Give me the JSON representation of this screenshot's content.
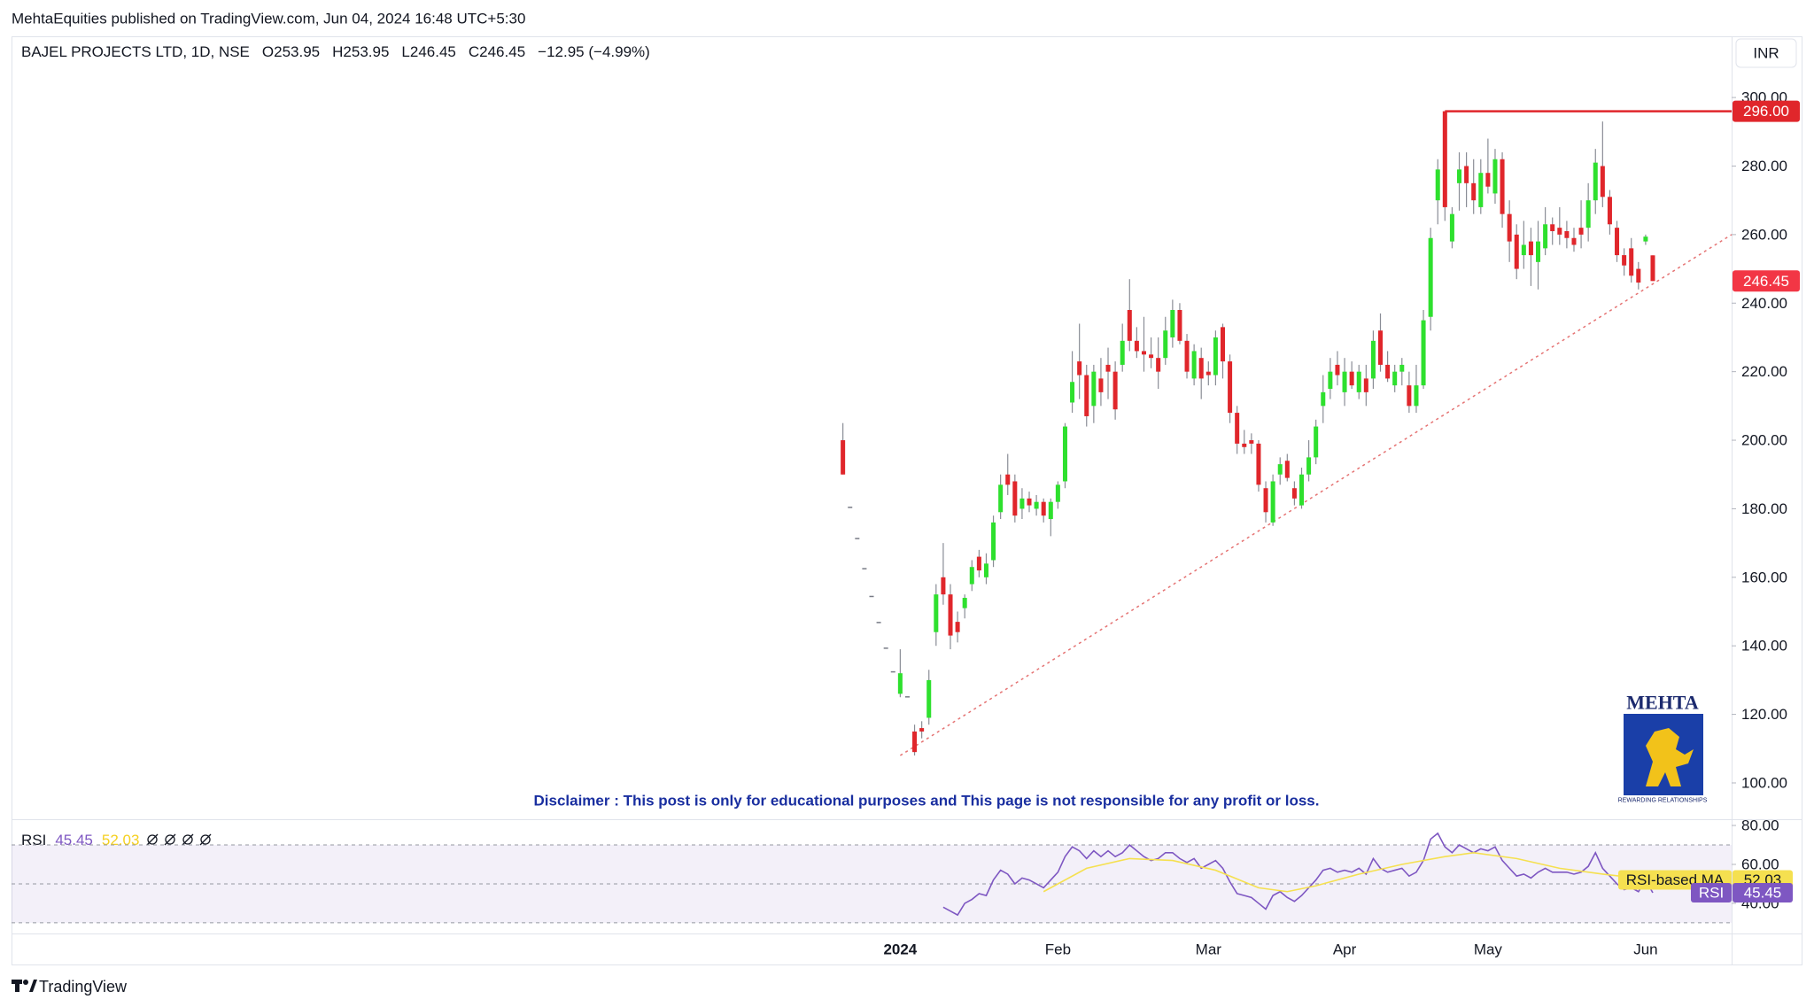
{
  "header": {
    "published": "MehtaEquities published on TradingView.com, Jun 04, 2024 16:48 UTC+5:30"
  },
  "disclaimer": "Disclaimer : This post is only for educational purposes and This page is not responsible for any profit or loss.",
  "logo": {
    "name": "MEHTA",
    "tagline": "REWARDING RELATIONSHIPS"
  },
  "footer": "TradingView",
  "chart_data": [
    {
      "type": "candlestick",
      "title": "BAJEL PROJECTS LTD, 1D, NSE",
      "ohlc_legend": [
        "O253.95",
        "H253.95",
        "L246.45",
        "C246.45",
        "−12.95 (−4.99%)"
      ],
      "currency": "INR",
      "up_color": "#2ee02e",
      "down_color": "#e0262b",
      "flat_color": "#787b86",
      "wick_color": "#8a8d96",
      "open": [
        200,
        180.6,
        171.5,
        162.7,
        154.6,
        147,
        139.5,
        132.6,
        126,
        125.3,
        115,
        116,
        119,
        144,
        160,
        155,
        147,
        151,
        158,
        166,
        160,
        165,
        179,
        190,
        188,
        180,
        183,
        180,
        182,
        177,
        182,
        188,
        211,
        223,
        219,
        210,
        218,
        222,
        220,
        222,
        238,
        229,
        226,
        225,
        224,
        224,
        230,
        238,
        229,
        218,
        224,
        220,
        219,
        233,
        223,
        208,
        199,
        200,
        199,
        186,
        176,
        190,
        194,
        186,
        181,
        190,
        195,
        210,
        215,
        222,
        214,
        220,
        214,
        218,
        218,
        232,
        222,
        216,
        220,
        216,
        210,
        216,
        236,
        270,
        296,
        258,
        275,
        280,
        275,
        268,
        278,
        272,
        282,
        266,
        260,
        254,
        258,
        252,
        256,
        263,
        262,
        261,
        259,
        262,
        262,
        270,
        280,
        271,
        262,
        254,
        256,
        250,
        258,
        253.95
      ],
      "high": [
        205,
        180.6,
        171.5,
        162.7,
        154.6,
        147,
        139.5,
        132.6,
        139,
        125.3,
        117,
        118,
        133,
        158,
        170,
        158,
        150,
        155,
        165,
        168,
        167,
        178,
        190,
        196,
        190,
        186,
        185,
        184,
        183,
        183,
        188,
        205,
        226,
        234,
        222,
        222,
        224,
        227,
        223,
        234,
        247,
        233,
        236,
        230,
        230,
        236,
        241,
        240,
        231,
        228,
        227,
        223,
        232,
        234,
        225,
        210,
        203,
        202,
        200,
        188,
        190,
        195,
        196,
        188,
        192,
        200,
        206,
        219,
        224,
        226,
        224,
        223,
        222,
        222,
        232,
        237,
        226,
        222,
        224,
        220,
        222,
        238,
        262,
        282,
        296,
        268,
        284,
        284,
        282,
        282,
        288,
        285,
        284,
        270,
        263,
        264,
        262,
        264,
        268,
        265,
        268,
        264,
        262,
        270,
        275,
        285,
        293,
        273,
        264,
        256,
        259,
        252,
        260,
        253.95
      ],
      "low": [
        190,
        180.6,
        171.5,
        162.7,
        154.6,
        147,
        139.5,
        132.6,
        125,
        125.3,
        108,
        113,
        117,
        140,
        152,
        139,
        141,
        148,
        156,
        160,
        158,
        163,
        177,
        184,
        176,
        177,
        179,
        178,
        176,
        172,
        180,
        186,
        208,
        212,
        204,
        205,
        210,
        212,
        206,
        220,
        226,
        224,
        220,
        221,
        215,
        222,
        227,
        228,
        218,
        216,
        212,
        216,
        216,
        218,
        205,
        196,
        196,
        196,
        185,
        176,
        175,
        187,
        188,
        181,
        180,
        188,
        193,
        205,
        212,
        216,
        210,
        215,
        212,
        210,
        215,
        220,
        217,
        214,
        216,
        208,
        208,
        215,
        232,
        263,
        264,
        256,
        267,
        268,
        266,
        266,
        272,
        269,
        262,
        252,
        247,
        250,
        245,
        244,
        254,
        257,
        257,
        256,
        255,
        256,
        258,
        266,
        268,
        260,
        252,
        248,
        246,
        244,
        257,
        246.45
      ],
      "close": [
        190,
        180.6,
        171.5,
        162.7,
        154.6,
        147,
        139.5,
        132.6,
        132,
        125.3,
        109,
        115,
        130,
        155,
        155,
        143,
        144,
        154,
        163,
        162,
        164,
        176,
        187,
        187,
        178,
        183,
        181,
        182,
        178,
        182,
        187,
        204,
        217,
        219,
        207,
        220,
        214,
        220,
        209,
        229,
        229,
        226,
        225,
        224,
        220,
        232,
        238,
        229,
        220,
        226,
        218,
        219,
        230,
        223,
        208,
        199,
        198,
        199,
        187,
        179,
        188,
        193,
        189,
        183,
        190,
        195,
        204,
        214,
        220,
        219,
        220,
        216,
        220,
        214,
        229,
        222,
        218,
        220,
        222,
        210,
        216,
        235,
        259,
        279,
        268,
        266,
        279,
        275,
        270,
        278,
        274,
        282,
        266,
        258,
        250,
        257,
        254,
        258,
        263,
        261,
        260,
        259,
        257,
        260,
        270,
        281,
        271,
        263,
        254,
        251,
        248,
        246,
        259.4,
        246.45
      ],
      "xlim": [
        -116,
        124
      ],
      "ylim": [
        89.4,
        317.6
      ],
      "yticks": [
        {
          "value": 100,
          "label": "100.00"
        },
        {
          "value": 120,
          "label": "120.00"
        },
        {
          "value": 140,
          "label": "140.00"
        },
        {
          "value": 160,
          "label": "160.00"
        },
        {
          "value": 180,
          "label": "180.00"
        },
        {
          "value": 200,
          "label": "200.00"
        },
        {
          "value": 220,
          "label": "220.00"
        },
        {
          "value": 240,
          "label": "240.00"
        },
        {
          "value": 260,
          "label": "260.00"
        },
        {
          "value": 280,
          "label": "280.00"
        },
        {
          "value": 300,
          "label": "300.00"
        }
      ],
      "level": {
        "value": 296,
        "label": "296.00",
        "color": "#e0262b"
      },
      "last_price": {
        "value": 246.45,
        "label": "246.45",
        "color": "#f23645"
      },
      "trendline": {
        "x": [
          8,
          124
        ],
        "values": [
          108,
          260
        ],
        "color": "#e57373"
      }
    },
    {
      "type": "line",
      "title": "RSI",
      "xlim": [
        -116,
        124
      ],
      "ylim": [
        24.5,
        83.2
      ],
      "yticks": [
        {
          "value": 40,
          "label": "40.00"
        },
        {
          "value": 60,
          "label": "60.00"
        },
        {
          "value": 80,
          "label": "80.00"
        }
      ],
      "bands": [
        30,
        50,
        70
      ],
      "band_color": "#7e57c2",
      "xticks": [
        {
          "value": 8,
          "label": "2024"
        },
        {
          "value": 30,
          "label": "Feb"
        },
        {
          "value": 51,
          "label": "Mar"
        },
        {
          "value": 70,
          "label": "Apr"
        },
        {
          "value": 90,
          "label": "May"
        },
        {
          "value": 112,
          "label": "Jun"
        }
      ],
      "series": [
        {
          "name": "RSI",
          "color": "#7e57c2",
          "values": [
            null,
            null,
            null,
            null,
            null,
            null,
            null,
            null,
            null,
            null,
            null,
            null,
            null,
            null,
            38,
            36,
            34,
            40,
            42,
            45,
            44,
            52,
            57,
            55,
            50,
            53,
            52,
            50,
            48,
            52,
            56,
            64,
            69,
            67,
            63,
            67,
            64,
            67,
            64,
            66,
            70,
            67,
            64,
            62,
            63,
            66,
            66,
            63,
            61,
            63,
            58,
            60,
            62,
            58,
            51,
            45,
            44,
            43,
            40,
            37,
            44,
            46,
            43,
            41,
            44,
            48,
            52,
            57,
            58,
            56,
            57,
            56,
            58,
            55,
            63,
            58,
            56,
            57,
            58,
            54,
            56,
            62,
            73,
            76,
            69,
            66,
            70,
            68,
            66,
            68,
            67,
            69,
            62,
            58,
            54,
            55,
            53,
            56,
            58,
            56,
            56,
            56,
            55,
            56,
            59,
            66,
            58,
            54,
            50,
            47,
            48,
            46,
            52,
            45.45
          ]
        },
        {
          "name": "RSI-based MA",
          "color": "#f5e050",
          "x": [
            28,
            34,
            40,
            46,
            52,
            58,
            62,
            66,
            72,
            78,
            84,
            88,
            94,
            100,
            106,
            113
          ],
          "values": [
            46,
            58,
            63,
            62,
            57,
            48,
            46,
            49,
            55,
            60,
            64,
            66,
            63,
            58,
            55,
            52.03
          ]
        }
      ]
    }
  ]
}
